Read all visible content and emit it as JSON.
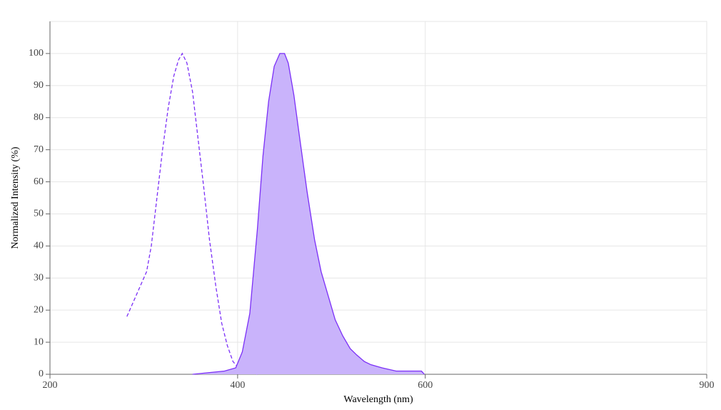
{
  "chart_data": {
    "type": "line",
    "x_label": "Wavelength (nm)",
    "y_label": "Normalized Intensity (%)",
    "xlim": [
      200,
      900
    ],
    "xticks": [
      200,
      400,
      600,
      900
    ],
    "ylim": [
      0,
      110
    ],
    "yticks": [
      0,
      10,
      20,
      30,
      40,
      50,
      60,
      70,
      80,
      90,
      100
    ],
    "grid": true,
    "series": [
      {
        "color": "#7b2ff7",
        "dash": true,
        "fill": false,
        "x": [
          282,
          291,
          303,
          308,
          314,
          320,
          326,
          332,
          337,
          341,
          346,
          352,
          358,
          364,
          370,
          377,
          383,
          389,
          395,
          401,
          409,
          421
        ],
        "values": [
          18,
          24,
          32,
          40,
          55,
          70,
          83,
          93,
          98,
          100,
          97,
          88,
          73,
          58,
          42,
          27,
          16,
          9,
          4,
          2,
          1,
          0
        ]
      },
      {
        "color": "#7b2ff7",
        "fill_color": "#c9b3fb",
        "dash": false,
        "fill": true,
        "x": [
          352,
          386,
          398,
          405,
          413,
          421,
          427,
          433,
          439,
          445,
          450,
          454,
          460,
          466,
          474,
          482,
          489,
          497,
          504,
          512,
          520,
          527,
          535,
          542,
          554,
          569,
          596,
          599
        ],
        "values": [
          0,
          1,
          2,
          7,
          19,
          45,
          68,
          85,
          96,
          100,
          100,
          97,
          87,
          74,
          57,
          42,
          32,
          24,
          17,
          12,
          8,
          6,
          4,
          3,
          2,
          1,
          1,
          0
        ]
      }
    ]
  }
}
